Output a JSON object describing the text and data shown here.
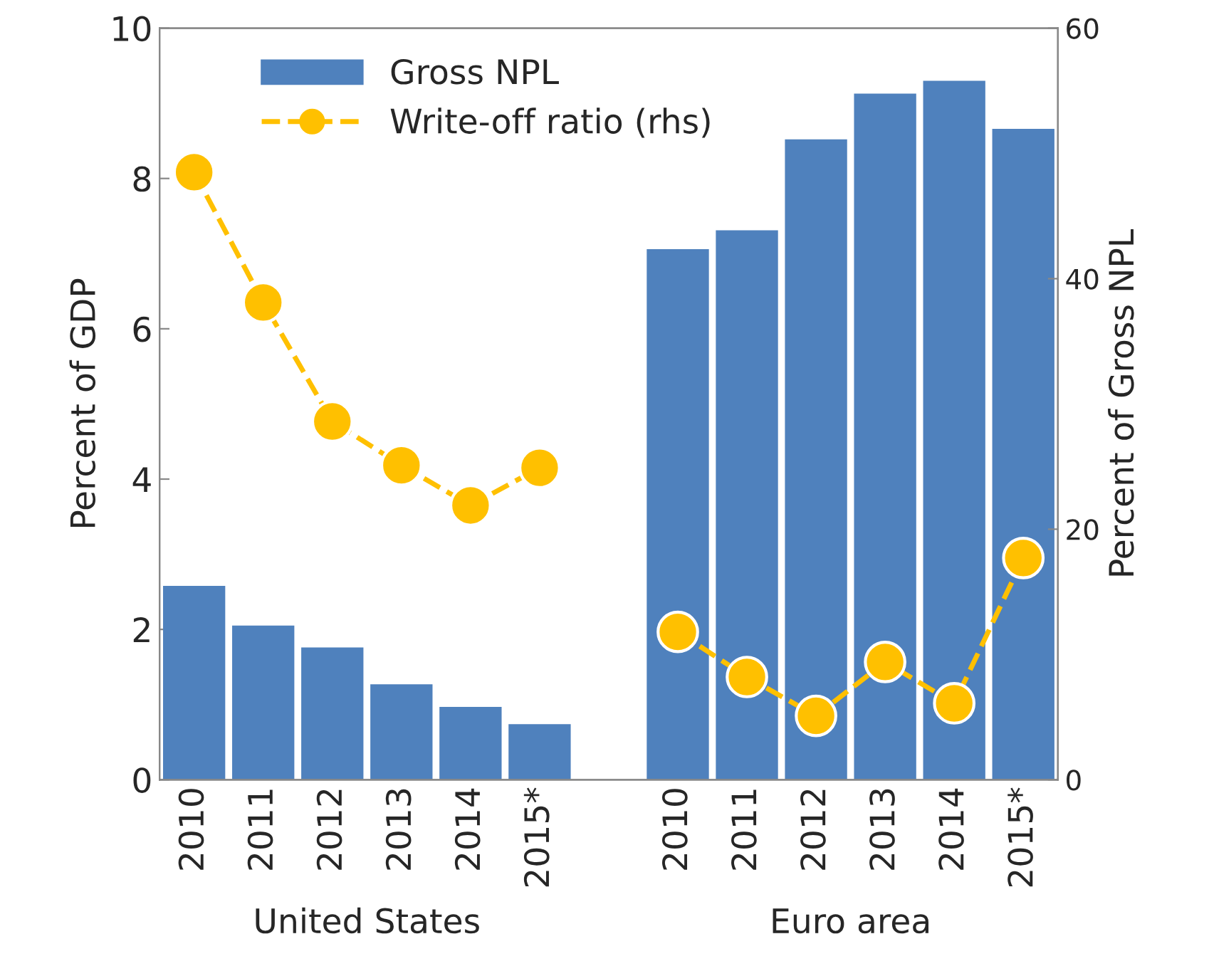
{
  "chart_data": {
    "type": "bar",
    "categories": [
      "2010",
      "2011",
      "2012",
      "2013",
      "2014",
      "2015*",
      null,
      "2010",
      "2011",
      "2012",
      "2013",
      "2014",
      "2015*"
    ],
    "series": [
      {
        "name": "Gross NPL",
        "color": "#4f81bd",
        "values": [
          2.58,
          2.05,
          1.76,
          1.27,
          0.97,
          0.74,
          null,
          7.06,
          7.31,
          8.52,
          9.13,
          9.3,
          8.66
        ]
      },
      {
        "name": "Write-off ratio (rhs)",
        "type": "line",
        "axis": "y2",
        "color": "#ffc000",
        "marker": "circle",
        "line_style": "dashed",
        "values": [
          48.5,
          38.1,
          28.6,
          25.1,
          21.9,
          24.9,
          null,
          11.8,
          8.2,
          5.1,
          9.4,
          6.1,
          17.7
        ]
      }
    ],
    "ylabel": "Percent of GDP",
    "y2label": "Percent of Gross NPL",
    "ylim": [
      0,
      10
    ],
    "yticks": [
      0,
      2,
      4,
      6,
      8,
      10
    ],
    "y2lim": [
      0,
      60
    ],
    "y2ticks": [
      0,
      20,
      40,
      60
    ],
    "annotations": [
      "United States",
      "Euro area"
    ],
    "legend": "top left",
    "grid": false
  }
}
